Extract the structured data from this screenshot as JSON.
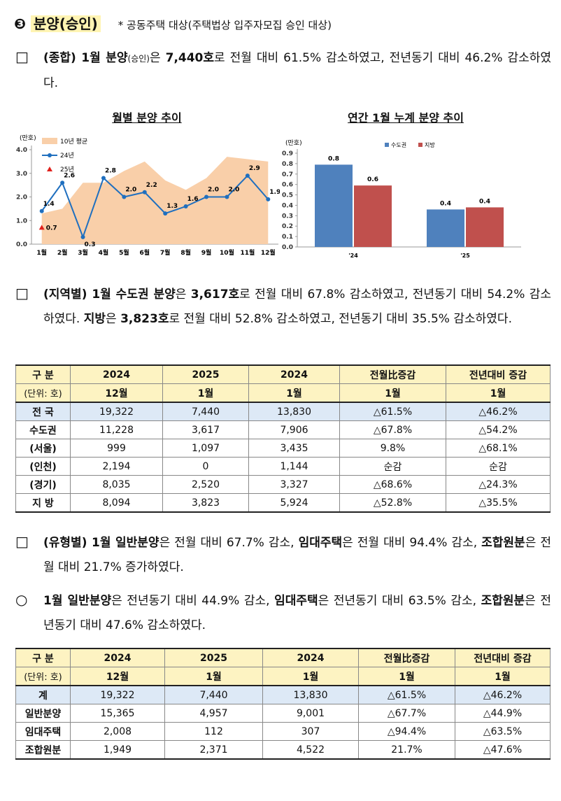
{
  "heading": {
    "number": "❸",
    "title": "분양(승인)",
    "note": "* 공동주택 대상(주택법상 입주자모집 승인 대상)"
  },
  "paragraphs": [
    {
      "marker": "□",
      "segments": [
        {
          "text": "(종합) 1월 분양",
          "bold": true
        },
        {
          "text": "(승인)",
          "small": true
        },
        {
          "text": "은 "
        },
        {
          "text": "7,440호",
          "bold": true
        },
        {
          "text": "로 전월 대비 61.5% 감소하였고, 전년동기 대비 46.2% 감소하였다."
        }
      ]
    },
    {
      "marker": "□",
      "segments": [
        {
          "text": "(지역별) 1월 수도권 분양",
          "bold": true
        },
        {
          "text": "은 "
        },
        {
          "text": "3,617호",
          "bold": true
        },
        {
          "text": "로 전월 대비 67.8% 감소하였고, 전년동기 대비 54.2% 감소하였다. "
        },
        {
          "text": "지방",
          "bold": true
        },
        {
          "text": "은 "
        },
        {
          "text": "3,823호",
          "bold": true
        },
        {
          "text": "로 전월 대비 52.8% 감소하였고, 전년동기 대비 35.5% 감소하였다."
        }
      ]
    },
    {
      "marker": "□",
      "segments": [
        {
          "text": "(유형별) 1월 일반분양",
          "bold": true
        },
        {
          "text": "은 전월 대비 67.7% 감소, "
        },
        {
          "text": "임대주택",
          "bold": true
        },
        {
          "text": "은 전월 대비 94.4% 감소, "
        },
        {
          "text": "조합원분",
          "bold": true
        },
        {
          "text": "은 전월 대비 21.7% 증가하였다."
        }
      ]
    },
    {
      "marker": "○",
      "segments": [
        {
          "text": "1월 일반분양",
          "bold": true
        },
        {
          "text": "은 전년동기 대비 44.9% 감소, "
        },
        {
          "text": "임대주택",
          "bold": true
        },
        {
          "text": "은 전년동기 대비 63.5% 감소, "
        },
        {
          "text": "조합원분",
          "bold": true
        },
        {
          "text": "은 전년동기 대비 47.6% 감소하였다."
        }
      ]
    }
  ],
  "chart_data": [
    {
      "type": "line",
      "title": "월별 분양 추이",
      "y_label": "(만호)",
      "categories": [
        "1월",
        "2월",
        "3월",
        "4월",
        "5월",
        "6월",
        "7월",
        "8월",
        "9월",
        "10월",
        "11월",
        "12월"
      ],
      "ylim": [
        0,
        4
      ],
      "yticks": [
        {
          "value": 0,
          "label": "0.0"
        },
        {
          "value": 1,
          "label": "1.0"
        },
        {
          "value": 2,
          "label": "2.0"
        },
        {
          "value": 3,
          "label": "3.0"
        },
        {
          "value": 4,
          "label": "4.0"
        }
      ],
      "series": [
        {
          "name": "10년 평균",
          "color": "#f9cfa9",
          "style": "area",
          "values": [
            1.3,
            1.5,
            2.6,
            2.6,
            3.1,
            3.5,
            2.7,
            2.3,
            2.8,
            3.7,
            3.6,
            3.5
          ]
        },
        {
          "name": "24년",
          "color": "#1f6fbf",
          "style": "line",
          "marker": "circle",
          "values": [
            1.4,
            2.6,
            0.3,
            2.8,
            2.0,
            2.2,
            1.3,
            1.6,
            2.0,
            2.0,
            2.9,
            1.9
          ],
          "value_labels": [
            "1.4",
            "2.6",
            "0.3",
            "2.8",
            "2.0",
            "2.2",
            "1.3",
            "1.6",
            "2.0",
            "2.0",
            "2.9",
            "1.9"
          ]
        },
        {
          "name": "25년",
          "color": "#e0201b",
          "style": "line",
          "marker": "triangle",
          "values": [
            0.7,
            null,
            null,
            null,
            null,
            null,
            null,
            null,
            null,
            null,
            null,
            null
          ],
          "value_labels": [
            "0.7",
            null,
            null,
            null,
            null,
            null,
            null,
            null,
            null,
            null,
            null,
            null
          ]
        }
      ]
    },
    {
      "type": "bar",
      "title": "연간 1월 누계 분양 추이",
      "y_label": "(만호)",
      "categories": [
        "'24",
        "'25"
      ],
      "ylim": [
        0,
        0.9
      ],
      "yticks": [
        {
          "value": 0,
          "label": "0.0"
        },
        0.1,
        0.2,
        0.3,
        0.4,
        0.5,
        0.6,
        0.7,
        0.8,
        0.9
      ],
      "series": [
        {
          "name": "수도권",
          "color": "#4f81bd",
          "values": [
            0.79,
            0.36
          ],
          "value_labels": [
            "0.8",
            "0.4"
          ]
        },
        {
          "name": "지방",
          "color": "#c0504d",
          "values": [
            0.59,
            0.38
          ],
          "value_labels": [
            "0.6",
            "0.4"
          ]
        }
      ]
    }
  ],
  "tables": [
    {
      "header": [
        [
          "구 분",
          "2024",
          "2025",
          "2024",
          "전월比증감",
          "전년대비 증감"
        ],
        [
          "(단위: 호)",
          "12월",
          "1월",
          "1월",
          "1월",
          "1월"
        ]
      ],
      "rows": [
        [
          "전 국",
          "19,322",
          "7,440",
          "13,830",
          "△61.5%",
          "△46.2%"
        ],
        [
          "수도권",
          "11,228",
          "3,617",
          "7,906",
          "△67.8%",
          "△54.2%"
        ],
        [
          "(서울)",
          "999",
          "1,097",
          "3,435",
          "9.8%",
          "△68.1%"
        ],
        [
          "(인천)",
          "2,194",
          "0",
          "1,144",
          "순감",
          "순감"
        ],
        [
          "(경기)",
          "8,035",
          "2,520",
          "3,327",
          "△68.6%",
          "△24.3%"
        ],
        [
          "지 방",
          "8,094",
          "3,823",
          "5,924",
          "△52.8%",
          "△35.5%"
        ]
      ]
    },
    {
      "header": [
        [
          "구 분",
          "2024",
          "2025",
          "2024",
          "전월比증감",
          "전년대비 증감"
        ],
        [
          "(단위: 호)",
          "12월",
          "1월",
          "1월",
          "1월",
          "1월"
        ]
      ],
      "rows": [
        [
          "계",
          "19,322",
          "7,440",
          "13,830",
          "△61.5%",
          "△46.2%"
        ],
        [
          "일반분양",
          "15,365",
          "4,957",
          "9,001",
          "△67.7%",
          "△44.9%"
        ],
        [
          "임대주택",
          "2,008",
          "112",
          "307",
          "△94.4%",
          "△63.5%"
        ],
        [
          "조합원분",
          "1,949",
          "2,371",
          "4,522",
          "21.7%",
          "△47.6%"
        ]
      ]
    }
  ]
}
